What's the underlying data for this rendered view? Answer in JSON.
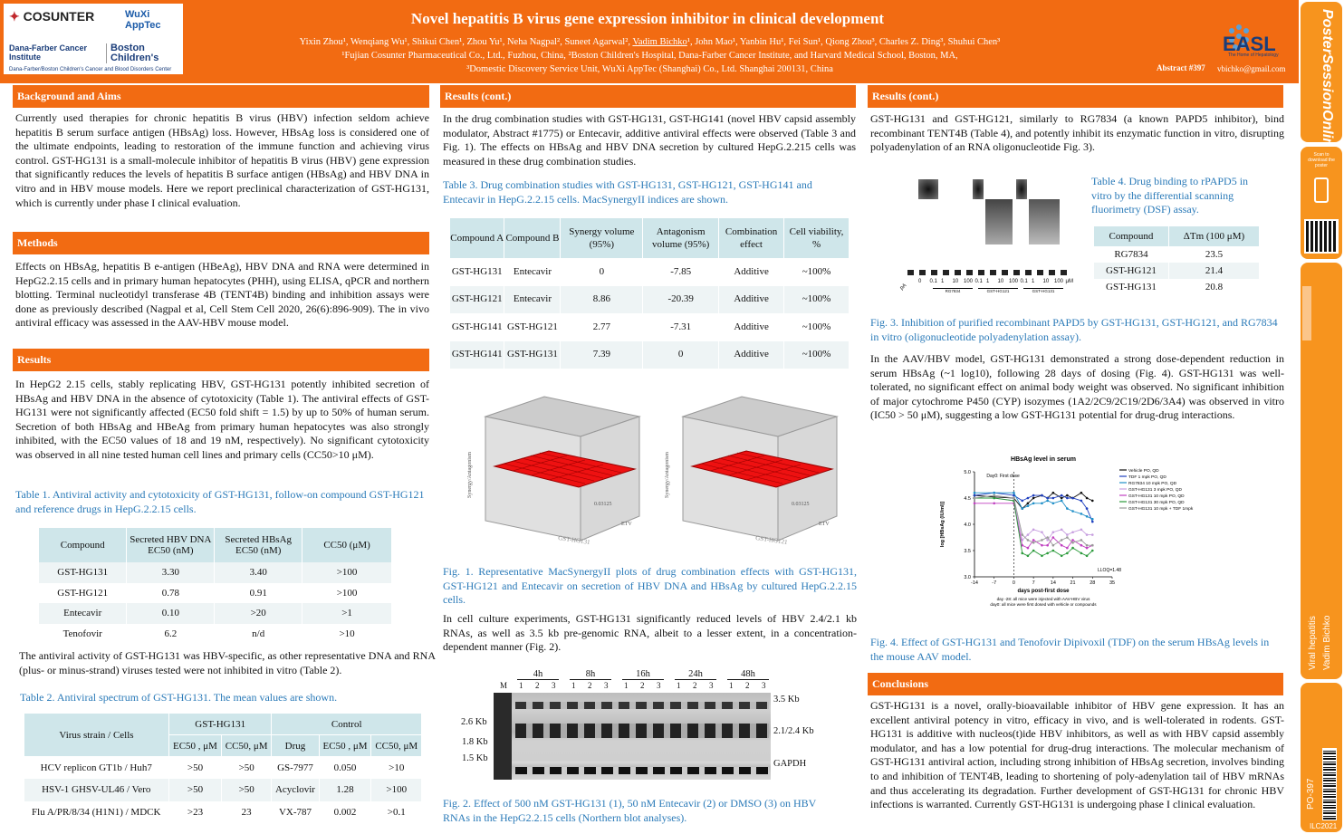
{
  "header": {
    "logo_cosunter": "COSUNTER",
    "logo_wuxi": "WuXi AppTec",
    "logo_dana": "Dana-Farber Cancer Institute",
    "logo_boston": "Boston Children's",
    "logo_sub": "Dana-Farber/Boston Children's Cancer and Blood Disorders Center",
    "title": "Novel hepatitis B virus gene expression inhibitor in clinical development",
    "authors_pre": "Yixin Zhou¹, Wenqiang Wu¹, Shikui Chen¹, Zhou Yu¹, Neha Nagpal², Suneet Agarwal², ",
    "authors_presenter": "Vadim Bichko",
    "authors_post": "¹, John Mao¹, Yanbin Hu¹, Fei Sun¹, Qiong Zhou³, Charles Z. Ding³, Shuhui Chen³",
    "affil_1": "¹Fujian Cosunter Pharmaceutical Co., Ltd., Fuzhou, China, ²Boston Children's Hospital, Dana-Farber Cancer Institute, and Harvard Medical School, Boston, MA,",
    "affil_2": "³Domestic Discovery Service Unit, WuXi AppTec (Shanghai) Co., Ltd. Shanghai 200131, China",
    "easl": "EASL",
    "easl_sub": "The Home of Hepatology",
    "abstract": "Abstract #397",
    "email": "vbichko@gmail.com"
  },
  "sidebar": {
    "brand": "PosterSessionOnline",
    "scan": "Scan to download the poster",
    "topic": "Viral hepatitis",
    "presenter": "Vadim Bichko",
    "code": "PO-397",
    "year": "ILC2021"
  },
  "col1": {
    "h_background": "Background and Aims",
    "p_background": "Currently used therapies for chronic hepatitis B virus (HBV) infection seldom achieve hepatitis B serum surface antigen (HBsAg) loss. However, HBsAg loss is considered one of the ultimate endpoints, leading to restoration of the immune function and achieving virus control. GST-HG131 is a small-molecule inhibitor of hepatitis B virus (HBV) gene expression that significantly reduces the levels of hepatitis B surface antigen (HBsAg) and HBV DNA in vitro and in HBV mouse models. Here we report preclinical characterization of GST-HG131, which is currently under phase I clinical evaluation.",
    "h_methods": "Methods",
    "p_methods": "Effects on HBsAg, hepatitis B e-antigen (HBeAg), HBV DNA and RNA were determined in HepG2.2.15 cells and in primary human hepatocytes (PHH), using ELISA, qPCR and northern blotting. Terminal nucleotidyl transferase 4B (TENT4B) binding and inhibition assays were done as previously described (Nagpal et al, Cell Stem Cell 2020, 26(6):896-909). The in vivo antiviral efficacy was assessed in the AAV-HBV mouse model.",
    "h_results": "Results",
    "p_results": "In HepG2 2.15 cells, stably replicating HBV, GST-HG131 potently inhibited secretion of HBsAg and HBV DNA in the absence of cytotoxicity (Table 1). The antiviral effects of GST-HG131 were not significantly affected (EC50 fold shift = 1.5) by up to 50% of human serum. Secretion of both HBsAg and HBeAg from primary human hepatocytes was also strongly inhibited, with the EC50 values of 18 and 19 nM, respectively). No significant cytotoxicity was observed in all nine tested human cell lines and primary cells (CC50>10 μM).",
    "cap_t1": "Table 1. Antiviral activity and cytotoxicity of GST-HG131, follow-on compound GST-HG121 and reference drugs in HepG.2.2.15 cells.",
    "t1_headers": [
      "Compound",
      "Secreted HBV DNA EC50 (nM)",
      "Secreted HBsAg EC50 (nM)",
      "CC50 (μM)"
    ],
    "t1_rows": [
      [
        "GST-HG131",
        "3.30",
        "3.40",
        ">100"
      ],
      [
        "GST-HG121",
        "0.78",
        "0.91",
        ">100"
      ],
      [
        "Entecavir",
        "0.10",
        ">20",
        ">1"
      ],
      [
        "Tenofovir",
        "6.2",
        "n/d",
        ">10"
      ]
    ],
    "p_specific": "The antiviral activity of GST-HG131 was HBV-specific, as other representative DNA and RNA (plus- or minus-strand) viruses tested were not inhibited in vitro (Table 2).",
    "cap_t2": "Table 2. Antiviral spectrum of GST-HG131. The mean values are shown.",
    "t2_head1": [
      "Virus strain / Cells",
      "GST-HG131",
      "Control"
    ],
    "t2_head2": [
      "EC50 , μM",
      "CC50, μM",
      "Drug",
      "EC50 , μM",
      "CC50, μM"
    ],
    "t2_rows": [
      [
        "HCV replicon GT1b / Huh7",
        ">50",
        ">50",
        "GS-7977",
        "0.050",
        ">10"
      ],
      [
        "HSV-1 GHSV-UL46 / Vero",
        ">50",
        ">50",
        "Acyclovir",
        "1.28",
        ">100"
      ],
      [
        "Flu A/PR/8/34 (H1N1) / MDCK",
        ">23",
        "23",
        "VX-787",
        "0.002",
        ">0.1"
      ]
    ]
  },
  "col2": {
    "h": "Results (cont.)",
    "p1": "In the drug combination studies with GST-HG131, GST-HG141 (novel HBV capsid assembly modulator, Abstract #1775) or Entecavir, additive antiviral effects were observed (Table 3 and Fig. 1). The effects on HBsAg and HBV DNA secretion by cultured HepG.2.215 cells was measured in these drug combination studies.",
    "cap_t3": "Table 3.  Drug combination studies with GST-HG131, GST-HG121, GST-HG141 and Entecavir in HepG.2.2.15 cells. MacSynergyII indices are shown.",
    "t3_headers": [
      "Compound A",
      "Compound B",
      "Synergy volume (95%)",
      "Antagonism volume (95%)",
      "Combination effect",
      "Cell viability, %"
    ],
    "t3_rows": [
      [
        "GST-HG131",
        "Entecavir",
        "0",
        "-7.85",
        "Additive",
        "~100%"
      ],
      [
        "GST-HG121",
        "Entecavir",
        "8.86",
        "-20.39",
        "Additive",
        "~100%"
      ],
      [
        "GST-HG141",
        "GST-HG121",
        "2.77",
        "-7.31",
        "Additive",
        "~100%"
      ],
      [
        "GST-HG141",
        "GST-HG131",
        "7.39",
        "0",
        "Additive",
        "~100%"
      ]
    ],
    "fig1_left_x": "GST-HG131",
    "fig1_right_x": "GST-HG121",
    "fig1_axis": "ETV",
    "fig1_ylabel": "Synergy/Antagonism",
    "fig1_edge": "0.03125",
    "cap_f1": "Fig. 1. Representative MacSynergyII plots of drug combination effects with GST-HG131, GST-HG121 and Entecavir on secretion of HBV DNA and HBsAg by cultured HepG.2.2.15 cells.",
    "p2": "In cell culture experiments, GST-HG131 significantly reduced levels of HBV 2.4/2.1 kb RNAs, as well as 3.5 kb pre-genomic RNA, albeit to a lesser extent, in a concentration-dependent manner (Fig. 2).",
    "blot_times": [
      "4h",
      "8h",
      "16h",
      "24h",
      "48h"
    ],
    "blot_marker": "M",
    "blot_lanes": [
      "1",
      "2",
      "3"
    ],
    "blot_left": [
      "2.6 Kb",
      "1.8 Kb",
      "1.5 Kb"
    ],
    "blot_right": [
      "3.5 Kb",
      "2.1/2.4 Kb",
      "GAPDH"
    ],
    "cap_f2": "Fig. 2. Effect of 500 nM GST-HG131 (1), 50 nM Entecavir (2) or DMSO (3) on HBV RNAs in the HepG2.2.15 cells (Northern blot analyses)."
  },
  "col3": {
    "h": "Results (cont.)",
    "p1": "GST-HG131 and GST-HG121, similarly to RG7834 (a known PAPD5 inhibitor), bind recombinant TENT4B (Table 4), and potently inhibit its enzymatic function in vitro, disrupting polyadenylation of an RNA oligonucleotide Fig. 3).",
    "gel_conc": [
      "0",
      "0.1",
      "1",
      "10",
      "100",
      "0.1",
      "1",
      "10",
      "100",
      "0.1",
      "1",
      "10",
      "100",
      "μM"
    ],
    "gel_groups": [
      "RG7834",
      "GST-HG121",
      "GST-HG131"
    ],
    "gel_tag": "pA",
    "cap_t4": "Table 4. Drug binding to rPAPD5 in vitro by the differential scanning fluorimetry (DSF) assay.",
    "t4_headers": [
      "Compound",
      "ΔTm (100 μM)"
    ],
    "t4_rows": [
      [
        "RG7834",
        "23.5"
      ],
      [
        "GST-HG121",
        "21.4"
      ],
      [
        "GST-HG131",
        "20.8"
      ]
    ],
    "cap_f3": "Fig. 3. Inhibition of purified recombinant PAPD5 by GST-HG131, GST-HG121, and RG7834 in vitro (oligonucleotide polyadenylation assay).",
    "p2": "In the AAV/HBV model, GST-HG131 demonstrated a strong dose-dependent reduction in serum HBsAg (~1 log10), following 28 days of dosing (Fig. 4). GST-HG131 was well-tolerated, no significant effect on animal body weight was observed. No significant inhibition of major cytochrome P450 (CYP) isozymes (1A2/2C9/2C19/2D6/3A4) was observed in vitro (IC50 > 50 μM), suggesting a low GST-HG131 potential for drug-drug interactions.",
    "cap_f4": "Fig. 4. Effect of GST-HG131 and Tenofovir Dipivoxil (TDF) on the serum HBsAg levels in the mouse AAV model.",
    "h_conc": "Conclusions",
    "p_conc": "GST-HG131 is a novel, orally-bioavailable inhibitor of HBV gene expression. It has an excellent antiviral potency in vitro, efficacy in vivo, and is well-tolerated in rodents. GST-HG131 is additive with nucleos(t)ide HBV inhibitors, as well as with HBV capsid assembly modulator, and has a low potential for drug-drug interactions. The molecular mechanism of GST-HG131 antiviral action, including strong inhibition of HBsAg secretion, involves binding to and inhibition of TENT4B, leading to shortening of poly-adenylation tail of HBV mRNAs and thus accelerating its degradation. Further development of GST-HG131 for chronic HBV infections is warranted. Currently GST-HG131 is undergoing phase I clinical evaluation."
  },
  "chart_data": {
    "type": "line",
    "title": "HBsAg level in serum",
    "xlabel": "days post-first dose",
    "ylabel": "log [HBsAg (IU/ml)]",
    "xlim": [
      -14,
      35
    ],
    "ylim": [
      3.0,
      5.0
    ],
    "x_ticks": [
      -14,
      -7,
      0,
      7,
      14,
      21,
      28,
      35
    ],
    "y_ticks": [
      "3.0",
      "3.5",
      "4.0",
      "4.5",
      "5.0"
    ],
    "annotation_day0": "Day0: First dose",
    "lloq": "LLOQ=1.48",
    "footnote_1": "day -28: all mice were injected with AAV-HBV virus",
    "footnote_2": "day0: all mice were first dosed with vehicle or compounds",
    "legend_position": "top-right",
    "x": [
      -14,
      -7,
      0,
      3,
      5,
      7,
      10,
      12,
      14,
      17,
      19,
      21,
      24,
      26,
      28
    ],
    "series": [
      {
        "name": "Vehicle PO, QD",
        "color": "#111111",
        "values": [
          4.55,
          4.52,
          4.5,
          4.3,
          4.4,
          4.5,
          4.55,
          4.5,
          4.6,
          4.5,
          4.55,
          4.5,
          4.6,
          4.5,
          4.45
        ]
      },
      {
        "name": "TDF 1 mpk PO, QD",
        "color": "#1f3fbf",
        "values": [
          4.55,
          4.6,
          4.55,
          4.45,
          4.5,
          4.55,
          4.55,
          4.5,
          4.5,
          4.55,
          4.5,
          4.5,
          4.45,
          4.3,
          4.05
        ]
      },
      {
        "name": "RG7834 10 mpk PO, QD",
        "color": "#1f8fc8",
        "values": [
          4.6,
          4.6,
          4.6,
          4.3,
          4.35,
          4.4,
          4.4,
          4.45,
          4.4,
          4.45,
          4.3,
          4.25,
          4.2,
          4.15,
          4.1
        ]
      },
      {
        "name": "GST-HG131 3 mpk PO, QD",
        "color": "#c8a0e0",
        "values": [
          4.5,
          4.5,
          4.45,
          3.7,
          3.8,
          3.9,
          3.85,
          3.7,
          3.85,
          3.9,
          3.8,
          3.85,
          3.9,
          3.8,
          3.8
        ]
      },
      {
        "name": "GST-HG131 10 mpk PO, QD",
        "color": "#c040c0",
        "values": [
          4.4,
          4.4,
          4.4,
          3.6,
          3.55,
          3.7,
          3.6,
          3.6,
          3.75,
          3.6,
          3.55,
          3.7,
          3.6,
          3.55,
          3.6
        ]
      },
      {
        "name": "GST-HG131 30 mpk PO, QD",
        "color": "#2a9a3a",
        "values": [
          4.5,
          4.5,
          4.45,
          3.45,
          3.4,
          3.5,
          3.4,
          3.45,
          3.5,
          3.4,
          3.45,
          3.55,
          3.45,
          3.4,
          3.5
        ]
      },
      {
        "name": "GST-HG131 10 mpk + TDF 1mpk",
        "color": "#999999",
        "values": [
          4.5,
          4.55,
          4.5,
          3.8,
          3.7,
          3.65,
          3.7,
          3.75,
          3.6,
          3.7,
          3.75,
          3.65,
          3.7,
          3.6,
          3.6
        ]
      }
    ]
  }
}
